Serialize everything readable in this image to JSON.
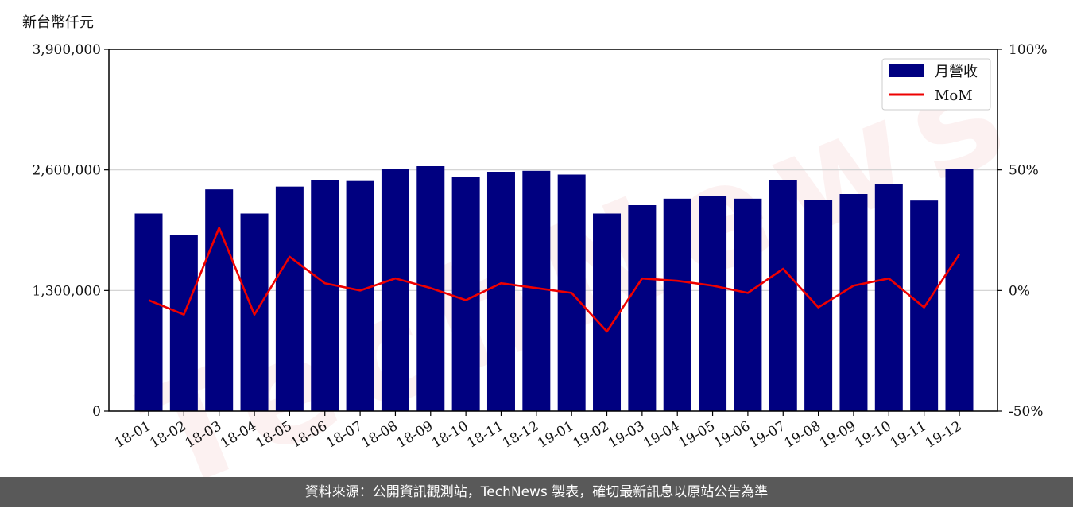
{
  "unit_label": "新台幣仟元",
  "footer_text": "資料來源：公開資訊觀測站，TechNews 製表，確切最新訊息以原站公告為準",
  "watermark_text": "TechNews",
  "colors": {
    "bar": "#000080",
    "line": "#ee0000",
    "footer_bg": "#595959"
  },
  "chart_data": {
    "type": "bar",
    "categories": [
      "18-01",
      "18-02",
      "18-03",
      "18-04",
      "18-05",
      "18-06",
      "18-07",
      "18-08",
      "18-09",
      "18-10",
      "18-11",
      "18-12",
      "19-01",
      "19-02",
      "19-03",
      "19-04",
      "19-05",
      "19-06",
      "19-07",
      "19-08",
      "19-09",
      "19-10",
      "19-11",
      "19-12"
    ],
    "series": [
      {
        "name": "月營收",
        "type": "bar",
        "axis": "left",
        "values": [
          2130000,
          1900000,
          2390000,
          2130000,
          2420000,
          2490000,
          2480000,
          2610000,
          2640000,
          2520000,
          2580000,
          2590000,
          2550000,
          2130000,
          2220000,
          2290000,
          2320000,
          2290000,
          2490000,
          2280000,
          2340000,
          2450000,
          2270000,
          2610000
        ]
      },
      {
        "name": "MoM",
        "type": "line",
        "axis": "right",
        "values": [
          -4,
          -10,
          26,
          -10,
          14,
          3,
          0,
          5,
          1,
          -4,
          3,
          1,
          -1,
          -17,
          5,
          4,
          2,
          -1,
          9,
          -7,
          2,
          5,
          -7,
          15
        ]
      }
    ],
    "yleft": {
      "range": [
        0,
        3900000
      ],
      "ticks": [
        "0",
        "1,300,000",
        "2,600,000",
        "3,900,000"
      ],
      "tick_values": [
        0,
        1300000,
        2600000,
        3900000
      ]
    },
    "yright": {
      "range": [
        -50,
        100
      ],
      "ticks": [
        "-50%",
        "0%",
        "50%",
        "100%"
      ],
      "tick_values": [
        -50,
        0,
        50,
        100
      ]
    },
    "grid": "horizontal",
    "legend_position": "top-right"
  }
}
